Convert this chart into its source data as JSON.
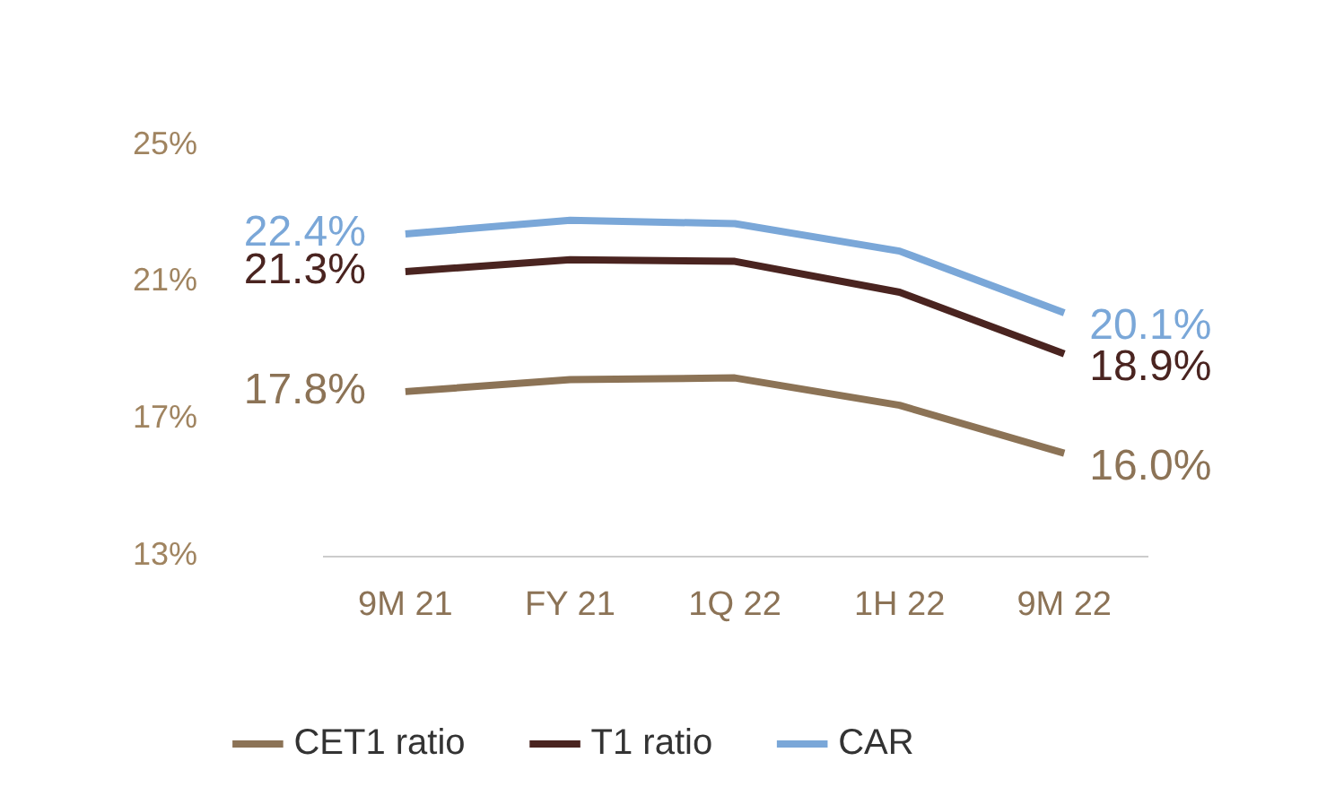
{
  "chart_data": {
    "type": "line",
    "categories": [
      "9M 21",
      "FY 21",
      "1Q 22",
      "1H 22",
      "9M 22"
    ],
    "series": [
      {
        "name": "CET1 ratio",
        "color": "#8c7356",
        "values": [
          17.8,
          18.15,
          18.2,
          17.4,
          16.0
        ],
        "value_labels": [
          "17.8%",
          null,
          null,
          null,
          "16.0%"
        ]
      },
      {
        "name": "T1 ratio",
        "color": "#4a2420",
        "values": [
          21.3,
          21.65,
          21.6,
          20.7,
          18.9
        ],
        "value_labels": [
          "21.3%",
          null,
          null,
          null,
          "18.9%"
        ]
      },
      {
        "name": "CAR",
        "color": "#7aa7d8",
        "values": [
          22.4,
          22.8,
          22.7,
          21.9,
          20.1
        ],
        "value_labels": [
          "22.4%",
          null,
          null,
          null,
          "20.1%"
        ]
      }
    ],
    "ylim": [
      13,
      25
    ],
    "yticks": [
      {
        "value": 13,
        "label": "13%"
      },
      {
        "value": 17,
        "label": "17%"
      },
      {
        "value": 21,
        "label": "21%"
      },
      {
        "value": 25,
        "label": "25%"
      }
    ],
    "grid": false,
    "legend": "bottom",
    "marker": "none",
    "line_style": "solid"
  }
}
